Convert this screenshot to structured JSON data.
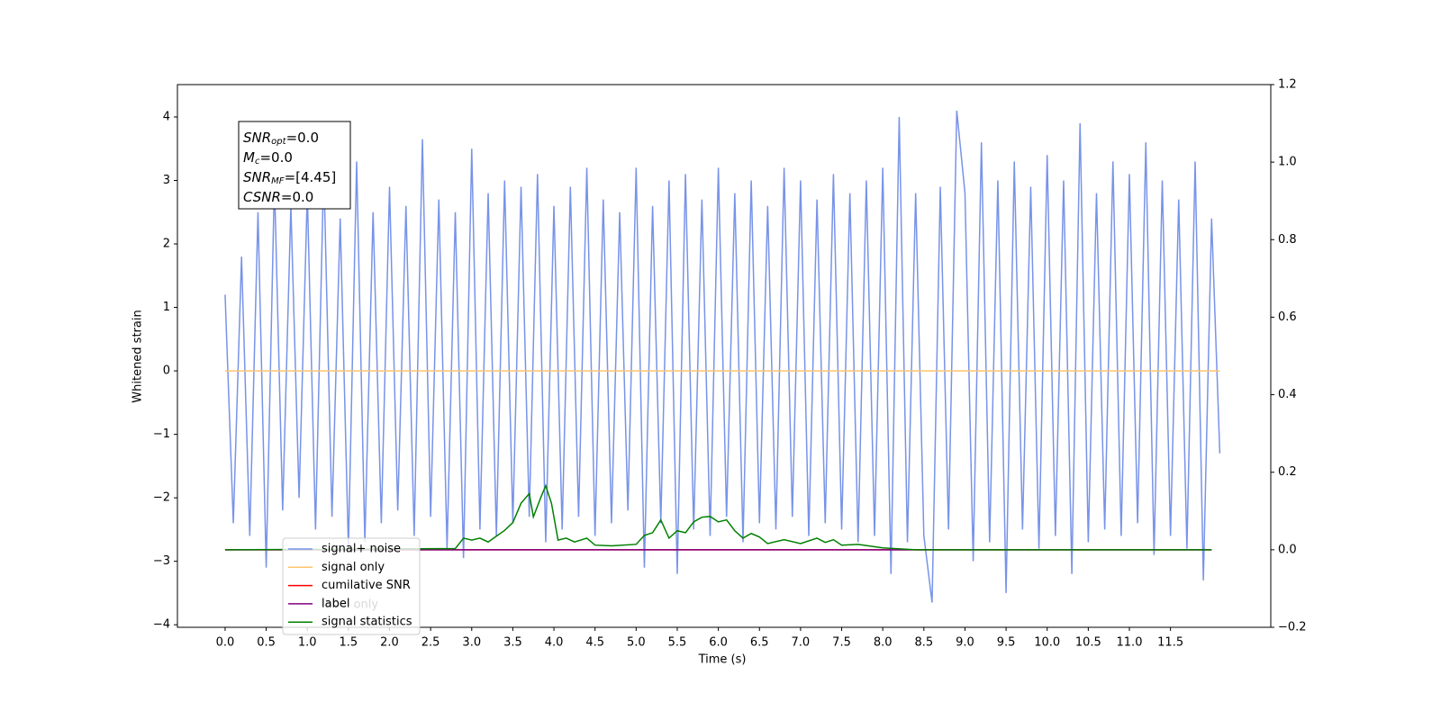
{
  "chart_data": {
    "type": "line",
    "xlabel": "Time (s)",
    "ylabel": "Whitened strain",
    "xlim": [
      -0.58,
      12.72
    ],
    "ylim": [
      -4.04,
      4.51
    ],
    "y2lim": [
      -0.2,
      1.2
    ],
    "xticks": [
      {
        "value": 0,
        "label": "0.0"
      },
      0.5,
      {
        "value": 1,
        "label": "1.0"
      },
      1.5,
      {
        "value": 2,
        "label": "2.0"
      },
      2.5,
      {
        "value": 3,
        "label": "3.0"
      },
      3.5,
      {
        "value": 4,
        "label": "4.0"
      },
      4.5,
      {
        "value": 5,
        "label": "5.0"
      },
      5.5,
      {
        "value": 6,
        "label": "6.0"
      },
      6.5,
      {
        "value": 7,
        "label": "7.0"
      },
      7.5,
      {
        "value": 8,
        "label": "8.0"
      },
      8.5,
      {
        "value": 9,
        "label": "9.0"
      },
      9.5,
      {
        "value": 10,
        "label": "10.0"
      },
      10.5,
      {
        "value": 11,
        "label": "11.0"
      },
      11.5
    ],
    "yticks": [
      {
        "value": -4,
        "label": "−4"
      },
      {
        "value": -3,
        "label": "−3"
      },
      {
        "value": -2,
        "label": "−2"
      },
      {
        "value": -1,
        "label": "−1"
      },
      0,
      1,
      2,
      3,
      4
    ],
    "y2ticks": [
      {
        "value": -0.2,
        "label": "−0.2"
      },
      {
        "value": 0,
        "label": "0.0"
      },
      0.2,
      0.4,
      0.6,
      0.8,
      {
        "value": 1,
        "label": "1.0"
      },
      1.2
    ],
    "annotation": [
      {
        "main": "SNR",
        "sub": "opt",
        "rest": "=0.0"
      },
      {
        "main": "M",
        "sub": "c",
        "rest": "=0.0"
      },
      {
        "main": "SNR",
        "sub": "MF",
        "rest": "=[4.45]"
      },
      {
        "main": "CSNR",
        "sub": null,
        "rest": "=0.0"
      }
    ],
    "legend_ghost": "label only",
    "series": [
      {
        "name": "signal+ noise",
        "color": "#7893e8",
        "x": [
          0.0,
          0.1,
          0.2,
          0.3,
          0.4,
          0.5,
          0.6,
          0.7,
          0.8,
          0.9,
          1.0,
          1.1,
          1.2,
          1.3,
          1.4,
          1.5,
          1.6,
          1.7,
          1.8,
          1.9,
          2.0,
          2.1,
          2.2,
          2.3,
          2.4,
          2.5,
          2.6,
          2.7,
          2.8,
          2.9,
          3.0,
          3.1,
          3.2,
          3.3,
          3.4,
          3.5,
          3.6,
          3.7,
          3.8,
          3.9,
          4.0,
          4.1,
          4.2,
          4.3,
          4.4,
          4.5,
          4.6,
          4.7,
          4.8,
          4.9,
          5.0,
          5.1,
          5.2,
          5.3,
          5.4,
          5.5,
          5.6,
          5.7,
          5.8,
          5.9,
          6.0,
          6.1,
          6.2,
          6.3,
          6.4,
          6.5,
          6.6,
          6.7,
          6.8,
          6.9,
          7.0,
          7.1,
          7.2,
          7.3,
          7.4,
          7.5,
          7.6,
          7.7,
          7.8,
          7.9,
          8.0,
          8.1,
          8.2,
          8.3,
          8.4,
          8.5,
          8.6,
          8.7,
          8.8,
          8.9,
          9.0,
          9.1,
          9.2,
          9.3,
          9.4,
          9.5,
          9.6,
          9.7,
          9.8,
          9.9,
          10.0,
          10.1,
          10.2,
          10.3,
          10.4,
          10.5,
          10.6,
          10.7,
          10.8,
          10.9,
          11.0,
          11.1,
          11.2,
          11.3,
          11.4,
          11.5,
          11.6,
          11.7,
          11.8,
          11.9,
          12.0,
          12.1
        ],
        "values": [
          1.2,
          -2.4,
          1.8,
          -2.6,
          2.5,
          -3.1,
          3.0,
          -2.2,
          2.6,
          -2.0,
          2.8,
          -2.5,
          3.2,
          -2.3,
          2.4,
          -2.8,
          3.3,
          -2.7,
          2.5,
          -2.4,
          2.9,
          -2.2,
          2.6,
          -2.6,
          3.65,
          -2.3,
          2.7,
          -2.8,
          2.5,
          -2.95,
          3.5,
          -2.5,
          2.8,
          -2.6,
          3.0,
          -2.4,
          2.9,
          -2.3,
          3.1,
          -2.7,
          2.6,
          -2.5,
          2.9,
          -2.3,
          3.2,
          -2.6,
          2.7,
          -2.4,
          2.5,
          -2.2,
          3.2,
          -3.1,
          2.6,
          -2.4,
          3.0,
          -3.2,
          3.1,
          -2.5,
          2.7,
          -2.6,
          3.2,
          -2.3,
          2.8,
          -2.7,
          3.0,
          -2.4,
          2.6,
          -2.5,
          3.2,
          -2.3,
          3.0,
          -2.6,
          2.7,
          -2.4,
          3.1,
          -2.5,
          2.8,
          -2.7,
          3.0,
          -2.6,
          3.2,
          -3.2,
          4.0,
          -2.7,
          2.8,
          -2.6,
          -3.65,
          2.9,
          -2.5,
          4.1,
          2.8,
          -3.0,
          3.6,
          -2.7,
          3.0,
          -3.5,
          3.3,
          -2.5,
          2.9,
          -2.8,
          3.4,
          -2.6,
          3.0,
          -3.2,
          3.9,
          -2.7,
          2.8,
          -2.5,
          3.3,
          -2.6,
          3.1,
          -2.4,
          3.6,
          -2.9,
          3.0,
          -2.6,
          2.7,
          -2.8,
          3.3,
          -3.3,
          2.4,
          -1.3
        ]
      },
      {
        "name": "signal only",
        "color": "#ffc46e",
        "x": [
          0.0,
          12.1
        ],
        "values": [
          0,
          0
        ]
      },
      {
        "name": "cumilative SNR",
        "color": "#ff0000",
        "axis": "y2",
        "x": [
          0.0,
          12.0
        ],
        "values": [
          0,
          0
        ]
      },
      {
        "name": "label",
        "color": "#800080",
        "axis": "y2",
        "x": [
          0.0,
          12.0
        ],
        "values": [
          0,
          0
        ]
      },
      {
        "name": "signal statistics",
        "color": "#008000",
        "axis": "y2",
        "x": [
          0.0,
          2.8,
          2.9,
          3.0,
          3.1,
          3.2,
          3.3,
          3.4,
          3.5,
          3.6,
          3.7,
          3.75,
          3.85,
          3.9,
          3.97,
          4.05,
          4.15,
          4.25,
          4.4,
          4.5,
          4.7,
          5.0,
          5.1,
          5.2,
          5.3,
          5.4,
          5.5,
          5.6,
          5.7,
          5.8,
          5.9,
          6.0,
          6.1,
          6.2,
          6.3,
          6.4,
          6.5,
          6.6,
          6.8,
          7.0,
          7.2,
          7.3,
          7.4,
          7.5,
          7.7,
          8.0,
          8.4,
          12.0
        ],
        "values": [
          0,
          0.003,
          0.03,
          0.025,
          0.03,
          0.02,
          0.035,
          0.05,
          0.07,
          0.12,
          0.145,
          0.085,
          0.14,
          0.165,
          0.12,
          0.025,
          0.03,
          0.02,
          0.03,
          0.012,
          0.01,
          0.014,
          0.037,
          0.044,
          0.077,
          0.03,
          0.049,
          0.044,
          0.072,
          0.084,
          0.086,
          0.072,
          0.077,
          0.049,
          0.03,
          0.042,
          0.033,
          0.016,
          0.026,
          0.016,
          0.03,
          0.019,
          0.026,
          0.012,
          0.014,
          0.005,
          0,
          0
        ]
      }
    ]
  }
}
